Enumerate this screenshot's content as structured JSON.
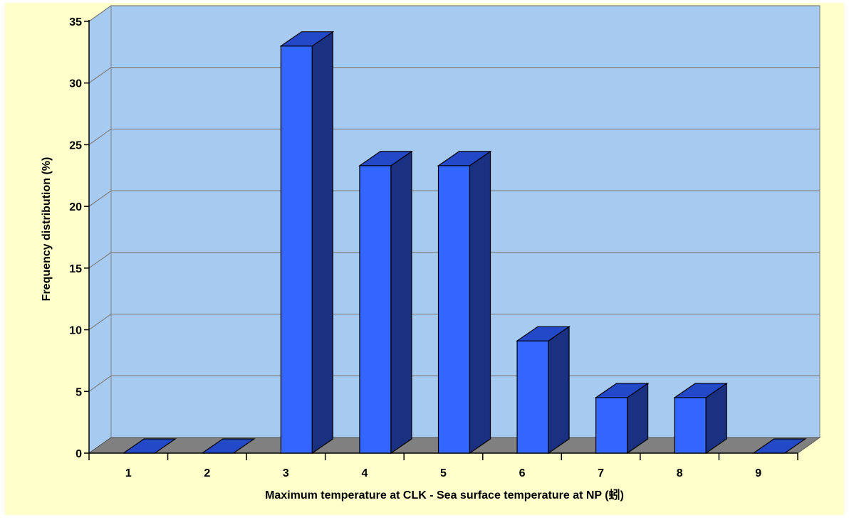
{
  "chart_data": {
    "type": "bar",
    "style": "3d-column",
    "categories": [
      "1",
      "2",
      "3",
      "4",
      "5",
      "6",
      "7",
      "8",
      "9"
    ],
    "values": [
      0,
      0,
      33,
      23.3,
      23.3,
      9.1,
      4.5,
      4.5,
      0
    ],
    "xlabel": "Maximum temperature at CLK - Sea surface temperature at NP (蚓)",
    "ylabel": "Frequency distribution (%)",
    "ylim": [
      0,
      35
    ],
    "yticks": [
      "0",
      "5",
      "10",
      "15",
      "20",
      "25",
      "30",
      "35"
    ],
    "grid": true,
    "legend": "none",
    "colors": {
      "background": "#ffffcc",
      "plot_wall": "#a6caf0",
      "floor": "#808080",
      "bar_front": "#3366ff",
      "bar_top": "#2348c8",
      "bar_side": "#1a3080",
      "gridline": "#808080"
    }
  }
}
